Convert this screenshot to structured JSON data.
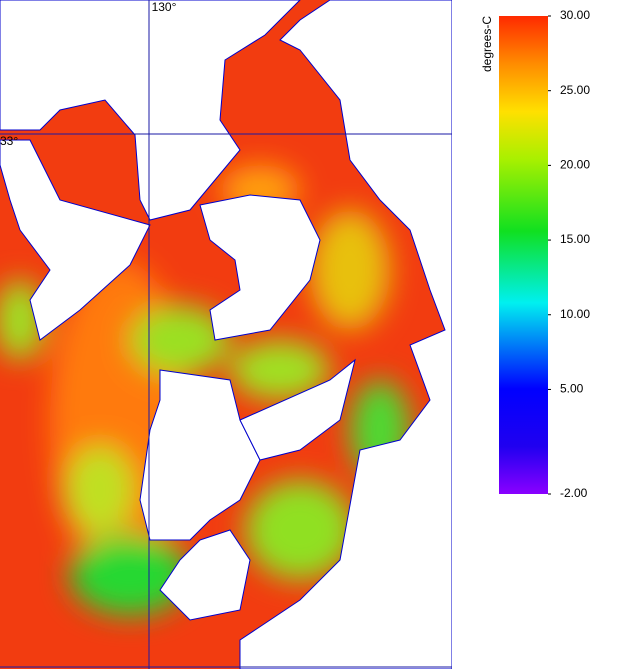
{
  "map": {
    "graticule": {
      "lon": {
        "value": 130,
        "label": "130°"
      },
      "lat": {
        "value": 33,
        "label": "33°"
      }
    }
  },
  "colorbar": {
    "title": "degrees-C",
    "lim": [
      -2,
      30
    ],
    "ticks": [
      {
        "value": 30,
        "label": "30.00"
      },
      {
        "value": 25,
        "label": "25.00"
      },
      {
        "value": 20,
        "label": "20.00"
      },
      {
        "value": 15,
        "label": "15.00"
      },
      {
        "value": 10,
        "label": "10.00"
      },
      {
        "value": 5,
        "label": "5.00"
      },
      {
        "value": -2,
        "label": "-2.00"
      }
    ]
  }
}
